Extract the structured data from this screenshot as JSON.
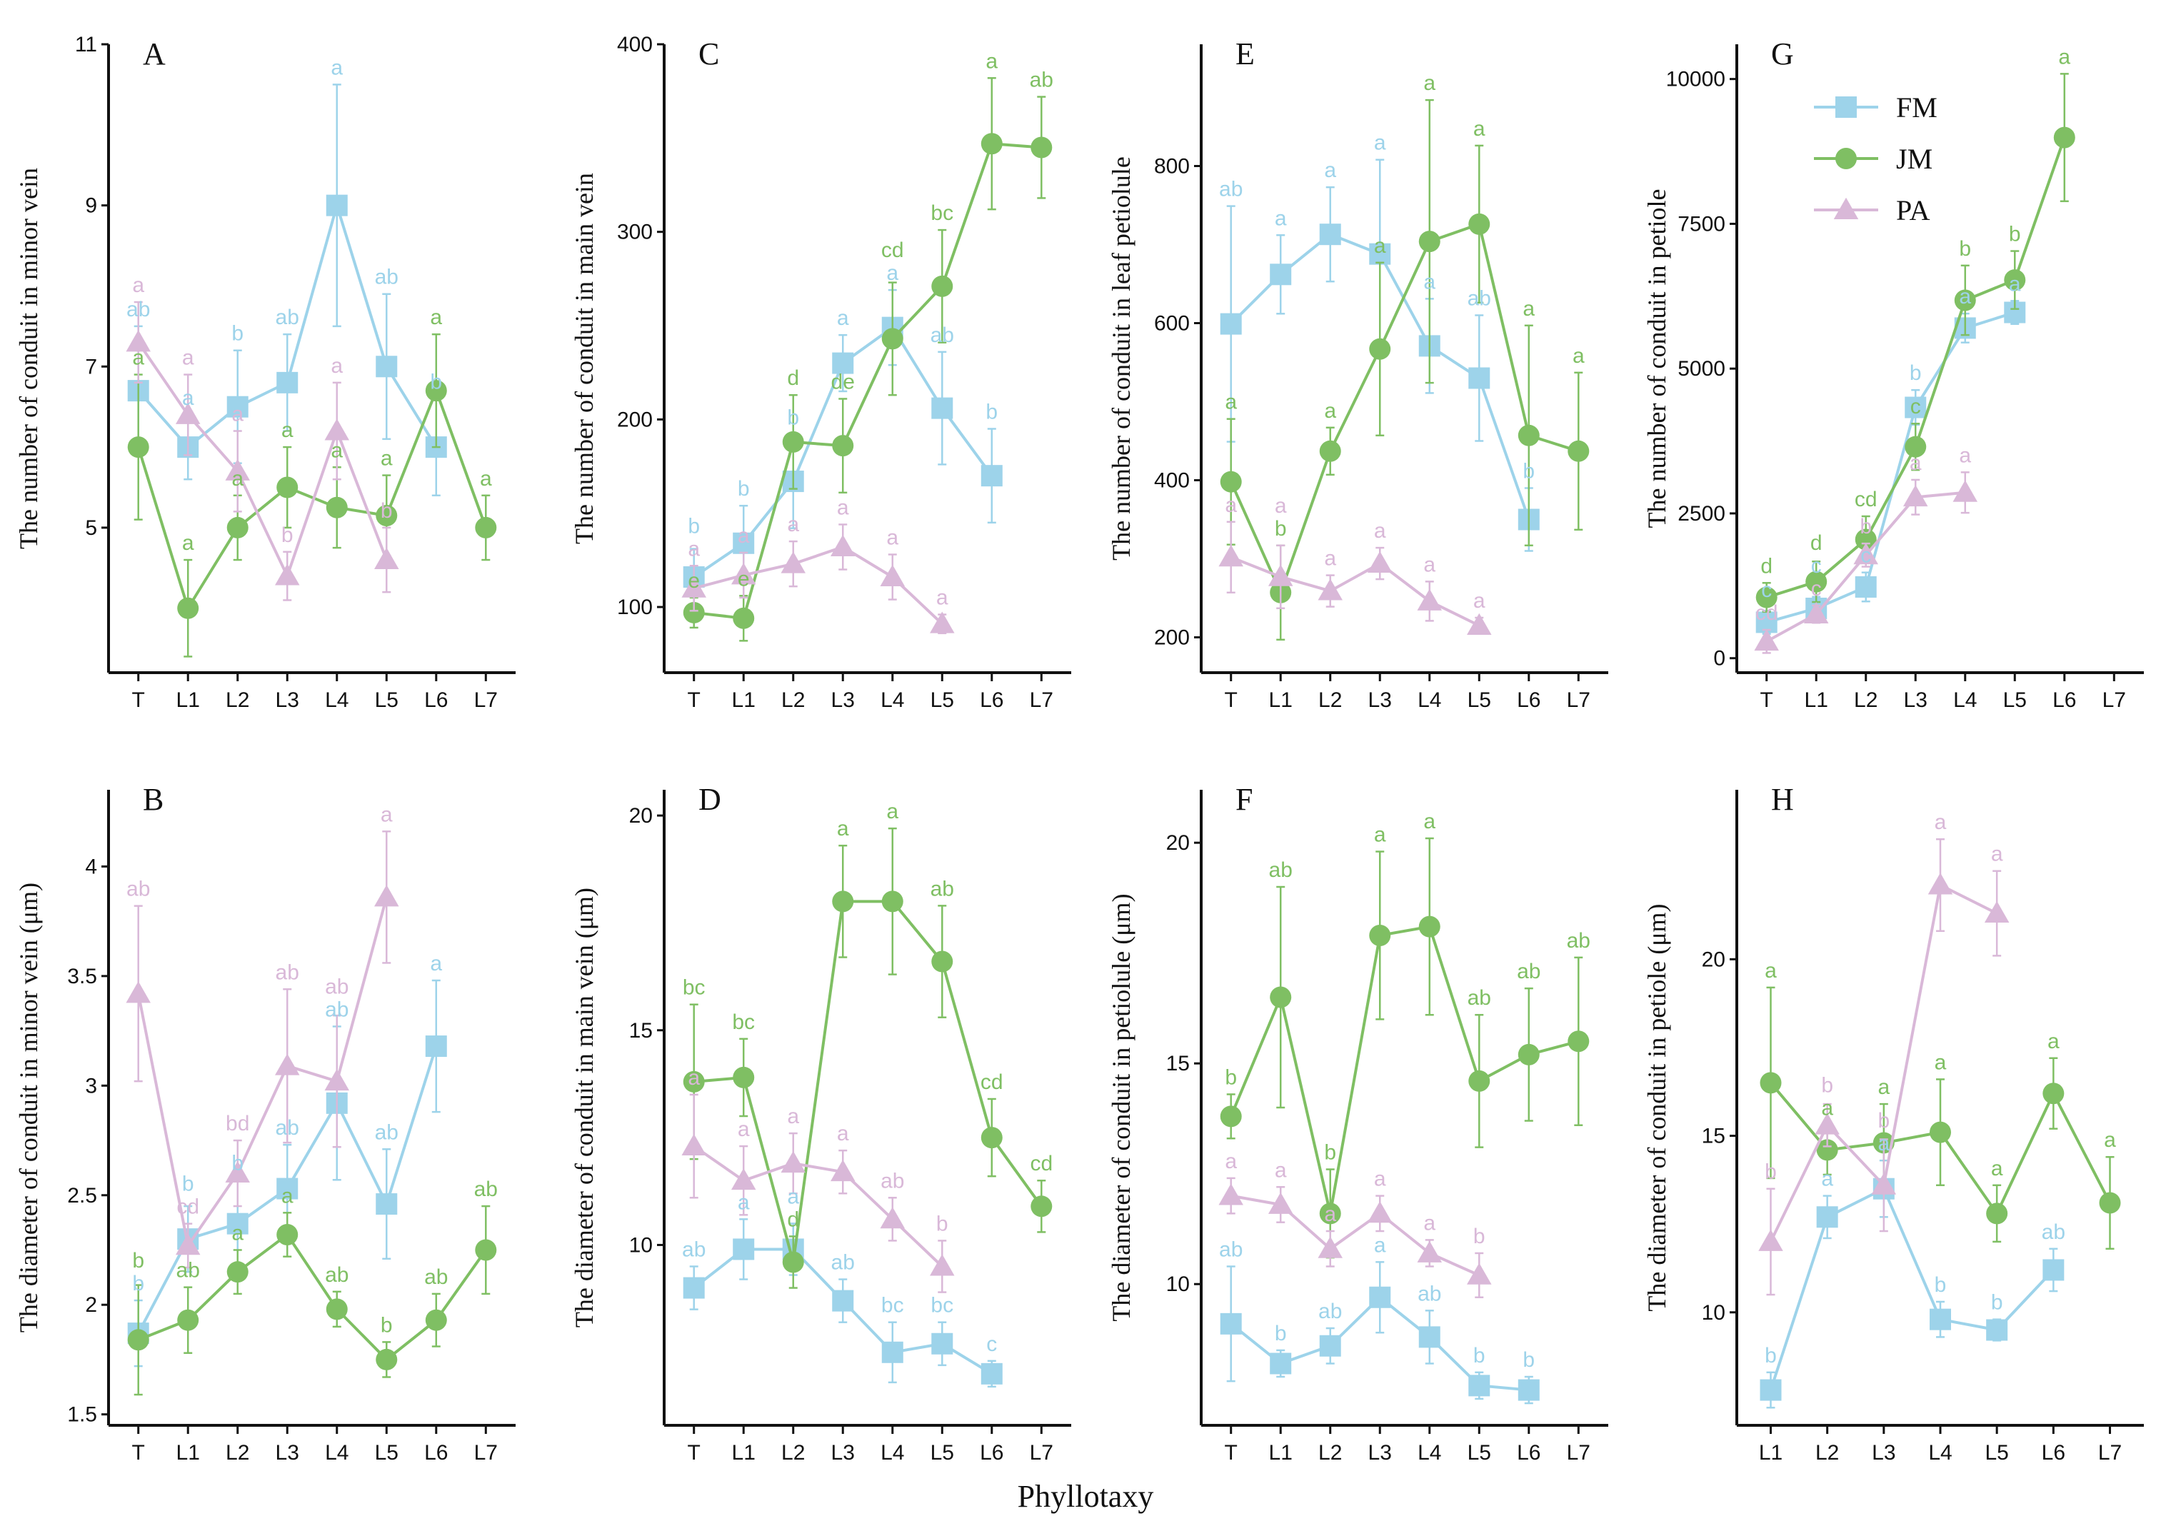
{
  "figure": {
    "xlabel": "Phyllotaxy",
    "series_colors": {
      "FM": "#9DD3EA",
      "JM": "#7FBF63",
      "PA": "#D9B8D8"
    }
  },
  "legend": {
    "items": [
      "FM",
      "JM",
      "PA"
    ]
  },
  "chart_data": [
    {
      "id": "A",
      "letter": "A",
      "type": "line",
      "title": "",
      "ylabel": "The number of conduit in minor vein",
      "xlabel": "",
      "categories": [
        "T",
        "L1",
        "L2",
        "L3",
        "L4",
        "L5",
        "L6",
        "L7"
      ],
      "ylim": [
        3.2,
        11
      ],
      "yticks": [
        5,
        7,
        9,
        11
      ],
      "series": [
        {
          "name": "FM",
          "values": [
            6.7,
            6.0,
            6.5,
            6.8,
            9.0,
            7.0,
            6.0,
            null
          ],
          "err": [
            0.8,
            0.4,
            0.7,
            0.6,
            1.5,
            0.9,
            0.6,
            null
          ],
          "letters": [
            "ab",
            "a",
            "b",
            "ab",
            "a",
            "ab",
            "b",
            null
          ]
        },
        {
          "name": "JM",
          "values": [
            6.0,
            4.0,
            5.0,
            5.5,
            5.25,
            5.15,
            6.7,
            5.0
          ],
          "err": [
            0.9,
            0.6,
            0.4,
            0.5,
            0.5,
            0.5,
            0.7,
            0.4
          ],
          "letters": [
            "a",
            "a",
            "a",
            "a",
            "a",
            "a",
            "a",
            "a"
          ]
        },
        {
          "name": "PA",
          "values": [
            7.3,
            6.4,
            5.7,
            4.4,
            6.2,
            4.6,
            null,
            null
          ],
          "err": [
            0.5,
            0.5,
            0.5,
            0.3,
            0.6,
            0.4,
            null,
            null
          ],
          "letters": [
            "a",
            "a",
            "a",
            "b",
            "a",
            "b",
            null,
            null
          ]
        }
      ]
    },
    {
      "id": "B",
      "letter": "B",
      "type": "line",
      "title": "",
      "ylabel": "The  diameter of conduit in minor vein (μm)",
      "xlabel": "",
      "categories": [
        "T",
        "L1",
        "L2",
        "L3",
        "L4",
        "L5",
        "L6",
        "L7"
      ],
      "ylim": [
        1.45,
        4.35
      ],
      "yticks": [
        1.5,
        2.0,
        2.5,
        3.0,
        3.5,
        4.0
      ],
      "series": [
        {
          "name": "FM",
          "values": [
            1.87,
            2.3,
            2.37,
            2.53,
            2.92,
            2.46,
            3.18,
            null
          ],
          "err": [
            0.15,
            0.15,
            0.2,
            0.2,
            0.35,
            0.25,
            0.3,
            null
          ],
          "letters": [
            "b",
            "b",
            "b",
            "ab",
            "ab",
            "ab",
            "a",
            null
          ]
        },
        {
          "name": "JM",
          "values": [
            1.84,
            1.93,
            2.15,
            2.32,
            1.98,
            1.75,
            1.93,
            2.25
          ],
          "err": [
            0.25,
            0.15,
            0.1,
            0.1,
            0.08,
            0.08,
            0.12,
            0.2
          ],
          "letters": [
            "b",
            "ab",
            "a",
            "a",
            "ab",
            "b",
            "ab",
            "ab"
          ]
        },
        {
          "name": "PA",
          "values": [
            3.42,
            2.27,
            2.6,
            3.09,
            3.02,
            3.86,
            null,
            null
          ],
          "err": [
            0.4,
            0.1,
            0.15,
            0.35,
            0.3,
            0.3,
            null,
            null
          ],
          "letters": [
            "ab",
            "cd",
            "bd",
            "ab",
            "ab",
            "a",
            null,
            null
          ]
        }
      ]
    },
    {
      "id": "C",
      "letter": "C",
      "type": "line",
      "title": "",
      "ylabel": "The number of conduit in main vein",
      "xlabel": "",
      "categories": [
        "T",
        "L1",
        "L2",
        "L3",
        "L4",
        "L5",
        "L6",
        "L7"
      ],
      "ylim": [
        65,
        400
      ],
      "yticks": [
        100,
        200,
        300,
        400
      ],
      "series": [
        {
          "name": "FM",
          "values": [
            116,
            134,
            167,
            230,
            249,
            206,
            170,
            null
          ],
          "err": [
            15,
            20,
            25,
            15,
            20,
            30,
            25,
            null
          ],
          "letters": [
            "b",
            "b",
            "b",
            "a",
            "a",
            "ab",
            "b",
            null
          ]
        },
        {
          "name": "JM",
          "values": [
            97,
            94,
            188,
            186,
            243,
            271,
            347,
            345
          ],
          "err": [
            8,
            12,
            25,
            25,
            30,
            30,
            35,
            27
          ],
          "letters": [
            "e",
            "e",
            "d",
            "de",
            "cd",
            "bc",
            "a",
            "ab"
          ]
        },
        {
          "name": "PA",
          "values": [
            110,
            117,
            123,
            132,
            116,
            91,
            null,
            null
          ],
          "err": [
            12,
            12,
            12,
            12,
            12,
            5,
            null,
            null
          ],
          "letters": [
            "a",
            "a",
            "a",
            "a",
            "a",
            "a",
            null,
            null
          ]
        }
      ]
    },
    {
      "id": "D",
      "letter": "D",
      "type": "line",
      "title": "",
      "ylabel": "The diameter of conduit in main vein (μm)",
      "xlabel": "",
      "categories": [
        "T",
        "L1",
        "L2",
        "L3",
        "L4",
        "L5",
        "L6",
        "L7"
      ],
      "ylim": [
        5.8,
        20.6
      ],
      "yticks": [
        10,
        15,
        20
      ],
      "series": [
        {
          "name": "FM",
          "values": [
            9.0,
            9.9,
            9.9,
            8.7,
            7.5,
            7.7,
            7.0,
            null
          ],
          "err": [
            0.5,
            0.7,
            0.6,
            0.5,
            0.7,
            0.5,
            0.3,
            null
          ],
          "letters": [
            "ab",
            "a",
            "a",
            "ab",
            "bc",
            "bc",
            "c",
            null
          ]
        },
        {
          "name": "JM",
          "values": [
            13.8,
            13.9,
            9.6,
            18.0,
            18.0,
            16.6,
            12.5,
            10.9
          ],
          "err": [
            1.8,
            0.9,
            0.6,
            1.3,
            1.7,
            1.3,
            0.9,
            0.6
          ],
          "letters": [
            "bc",
            "bc",
            "d",
            "a",
            "a",
            "ab",
            "cd",
            "cd"
          ]
        },
        {
          "name": "PA",
          "values": [
            12.3,
            11.5,
            11.9,
            11.7,
            10.6,
            9.5,
            null,
            null
          ],
          "err": [
            1.2,
            0.8,
            0.7,
            0.5,
            0.5,
            0.6,
            null,
            null
          ],
          "letters": [
            "a",
            "a",
            "a",
            "a",
            "ab",
            "b",
            null,
            null
          ]
        }
      ]
    },
    {
      "id": "E",
      "letter": "E",
      "type": "line",
      "title": "",
      "ylabel": "The number of conduit in leaf petiolule",
      "xlabel": "",
      "categories": [
        "T",
        "L1",
        "L2",
        "L3",
        "L4",
        "L5",
        "L6",
        "L7"
      ],
      "ylim": [
        155,
        955
      ],
      "yticks": [
        200,
        400,
        600,
        800
      ],
      "series": [
        {
          "name": "FM",
          "values": [
            599,
            662,
            713,
            688,
            571,
            530,
            350,
            null
          ],
          "err": [
            150,
            50,
            60,
            120,
            60,
            80,
            40,
            null
          ],
          "letters": [
            "ab",
            "a",
            "a",
            "a",
            "a",
            "ab",
            "b",
            null
          ]
        },
        {
          "name": "JM",
          "values": [
            398,
            257,
            437,
            567,
            704,
            726,
            457,
            437
          ],
          "err": [
            80,
            60,
            30,
            110,
            180,
            100,
            140,
            100
          ],
          "letters": [
            "a",
            "b",
            "a",
            "a",
            "a",
            "a",
            "a",
            "a"
          ]
        },
        {
          "name": "PA",
          "values": [
            302,
            277,
            259,
            294,
            246,
            215,
            null,
            null
          ],
          "err": [
            45,
            40,
            20,
            20,
            25,
            10,
            null,
            null
          ],
          "letters": [
            "a",
            "a",
            "a",
            "a",
            "a",
            "a",
            null,
            null
          ]
        }
      ]
    },
    {
      "id": "F",
      "letter": "F",
      "type": "line",
      "title": "",
      "ylabel": "The  diameter of conduit in petiolule (μm)",
      "xlabel": "",
      "categories": [
        "T",
        "L1",
        "L2",
        "L3",
        "L4",
        "L5",
        "L6",
        "L7"
      ],
      "ylim": [
        6.8,
        21.2
      ],
      "yticks": [
        10,
        15,
        20
      ],
      "series": [
        {
          "name": "FM",
          "values": [
            9.1,
            8.2,
            8.6,
            9.7,
            8.8,
            7.7,
            7.6,
            null
          ],
          "err": [
            1.3,
            0.3,
            0.4,
            0.8,
            0.6,
            0.3,
            0.3,
            null
          ],
          "letters": [
            "ab",
            "b",
            "ab",
            "a",
            "ab",
            "b",
            "b",
            null
          ]
        },
        {
          "name": "JM",
          "values": [
            13.8,
            16.5,
            11.6,
            17.9,
            18.1,
            14.6,
            15.2,
            15.5
          ],
          "err": [
            0.5,
            2.5,
            1.0,
            1.9,
            2.0,
            1.5,
            1.5,
            1.9
          ],
          "letters": [
            "b",
            "ab",
            "b",
            "a",
            "a",
            "ab",
            "ab",
            "ab"
          ]
        },
        {
          "name": "PA",
          "values": [
            12.0,
            11.8,
            10.8,
            11.6,
            10.7,
            10.2,
            null,
            null
          ],
          "err": [
            0.4,
            0.4,
            0.4,
            0.4,
            0.3,
            0.5,
            null,
            null
          ],
          "letters": [
            "a",
            "a",
            "a",
            "a",
            "a",
            "b",
            null,
            null
          ]
        }
      ]
    },
    {
      "id": "G",
      "letter": "G",
      "type": "line",
      "title": "",
      "ylabel": "The number of conduit in petiole",
      "xlabel": "",
      "categories": [
        "T",
        "L1",
        "L2",
        "L3",
        "L4",
        "L5",
        "L6",
        "L7"
      ],
      "ylim": [
        -250,
        10600
      ],
      "yticks": [
        0,
        2500,
        5000,
        7500,
        10000
      ],
      "series": [
        {
          "name": "FM",
          "values": [
            620,
            860,
            1230,
            4330,
            5700,
            5970,
            null,
            null
          ],
          "err": [
            200,
            200,
            250,
            300,
            250,
            200,
            null,
            null
          ],
          "letters": [
            "c",
            "c",
            "c",
            "b",
            "a",
            "a",
            null,
            null
          ]
        },
        {
          "name": "JM",
          "values": [
            1050,
            1320,
            2050,
            3650,
            6180,
            6530,
            8990,
            null
          ],
          "err": [
            250,
            350,
            400,
            400,
            600,
            500,
            1100,
            null
          ],
          "letters": [
            "d",
            "d",
            "cd",
            "c",
            "b",
            "b",
            "a",
            null
          ]
        },
        {
          "name": "PA",
          "values": [
            290,
            760,
            1780,
            2780,
            2860,
            null,
            null,
            null
          ],
          "err": [
            200,
            150,
            200,
            300,
            350,
            null,
            null,
            null
          ],
          "letters": [
            "cd",
            "c",
            "b",
            "a",
            "a",
            null,
            null,
            null
          ]
        }
      ]
    },
    {
      "id": "H",
      "letter": "H",
      "type": "line",
      "title": "",
      "ylabel": "The  diameter of conduit in petiole (μm)",
      "xlabel": "",
      "categories": [
        "L1",
        "L2",
        "L3",
        "L4",
        "L5",
        "L6",
        "L7"
      ],
      "ylim": [
        6.8,
        24.8
      ],
      "yticks": [
        10,
        15,
        20
      ],
      "series": [
        {
          "name": "FM",
          "values": [
            7.8,
            12.7,
            13.5,
            9.8,
            9.5,
            11.2,
            null
          ],
          "err": [
            0.5,
            0.6,
            0.8,
            0.5,
            0.3,
            0.6,
            null
          ],
          "letters": [
            "b",
            "a",
            "a",
            "b",
            "b",
            "ab",
            null
          ]
        },
        {
          "name": "JM",
          "values": [
            16.5,
            14.6,
            14.8,
            15.1,
            12.8,
            16.2,
            13.1
          ],
          "err": [
            2.7,
            0.7,
            1.1,
            1.5,
            0.8,
            1.0,
            1.3
          ],
          "letters": [
            "a",
            "a",
            "a",
            "a",
            "a",
            "a",
            "a"
          ]
        },
        {
          "name": "PA",
          "values": [
            12.0,
            15.3,
            13.6,
            22.1,
            21.3,
            null,
            null
          ],
          "err": [
            1.5,
            0.6,
            1.3,
            1.3,
            1.2,
            null,
            null
          ],
          "letters": [
            "b",
            "b",
            "b",
            "a",
            "a",
            null,
            null
          ]
        }
      ]
    }
  ]
}
